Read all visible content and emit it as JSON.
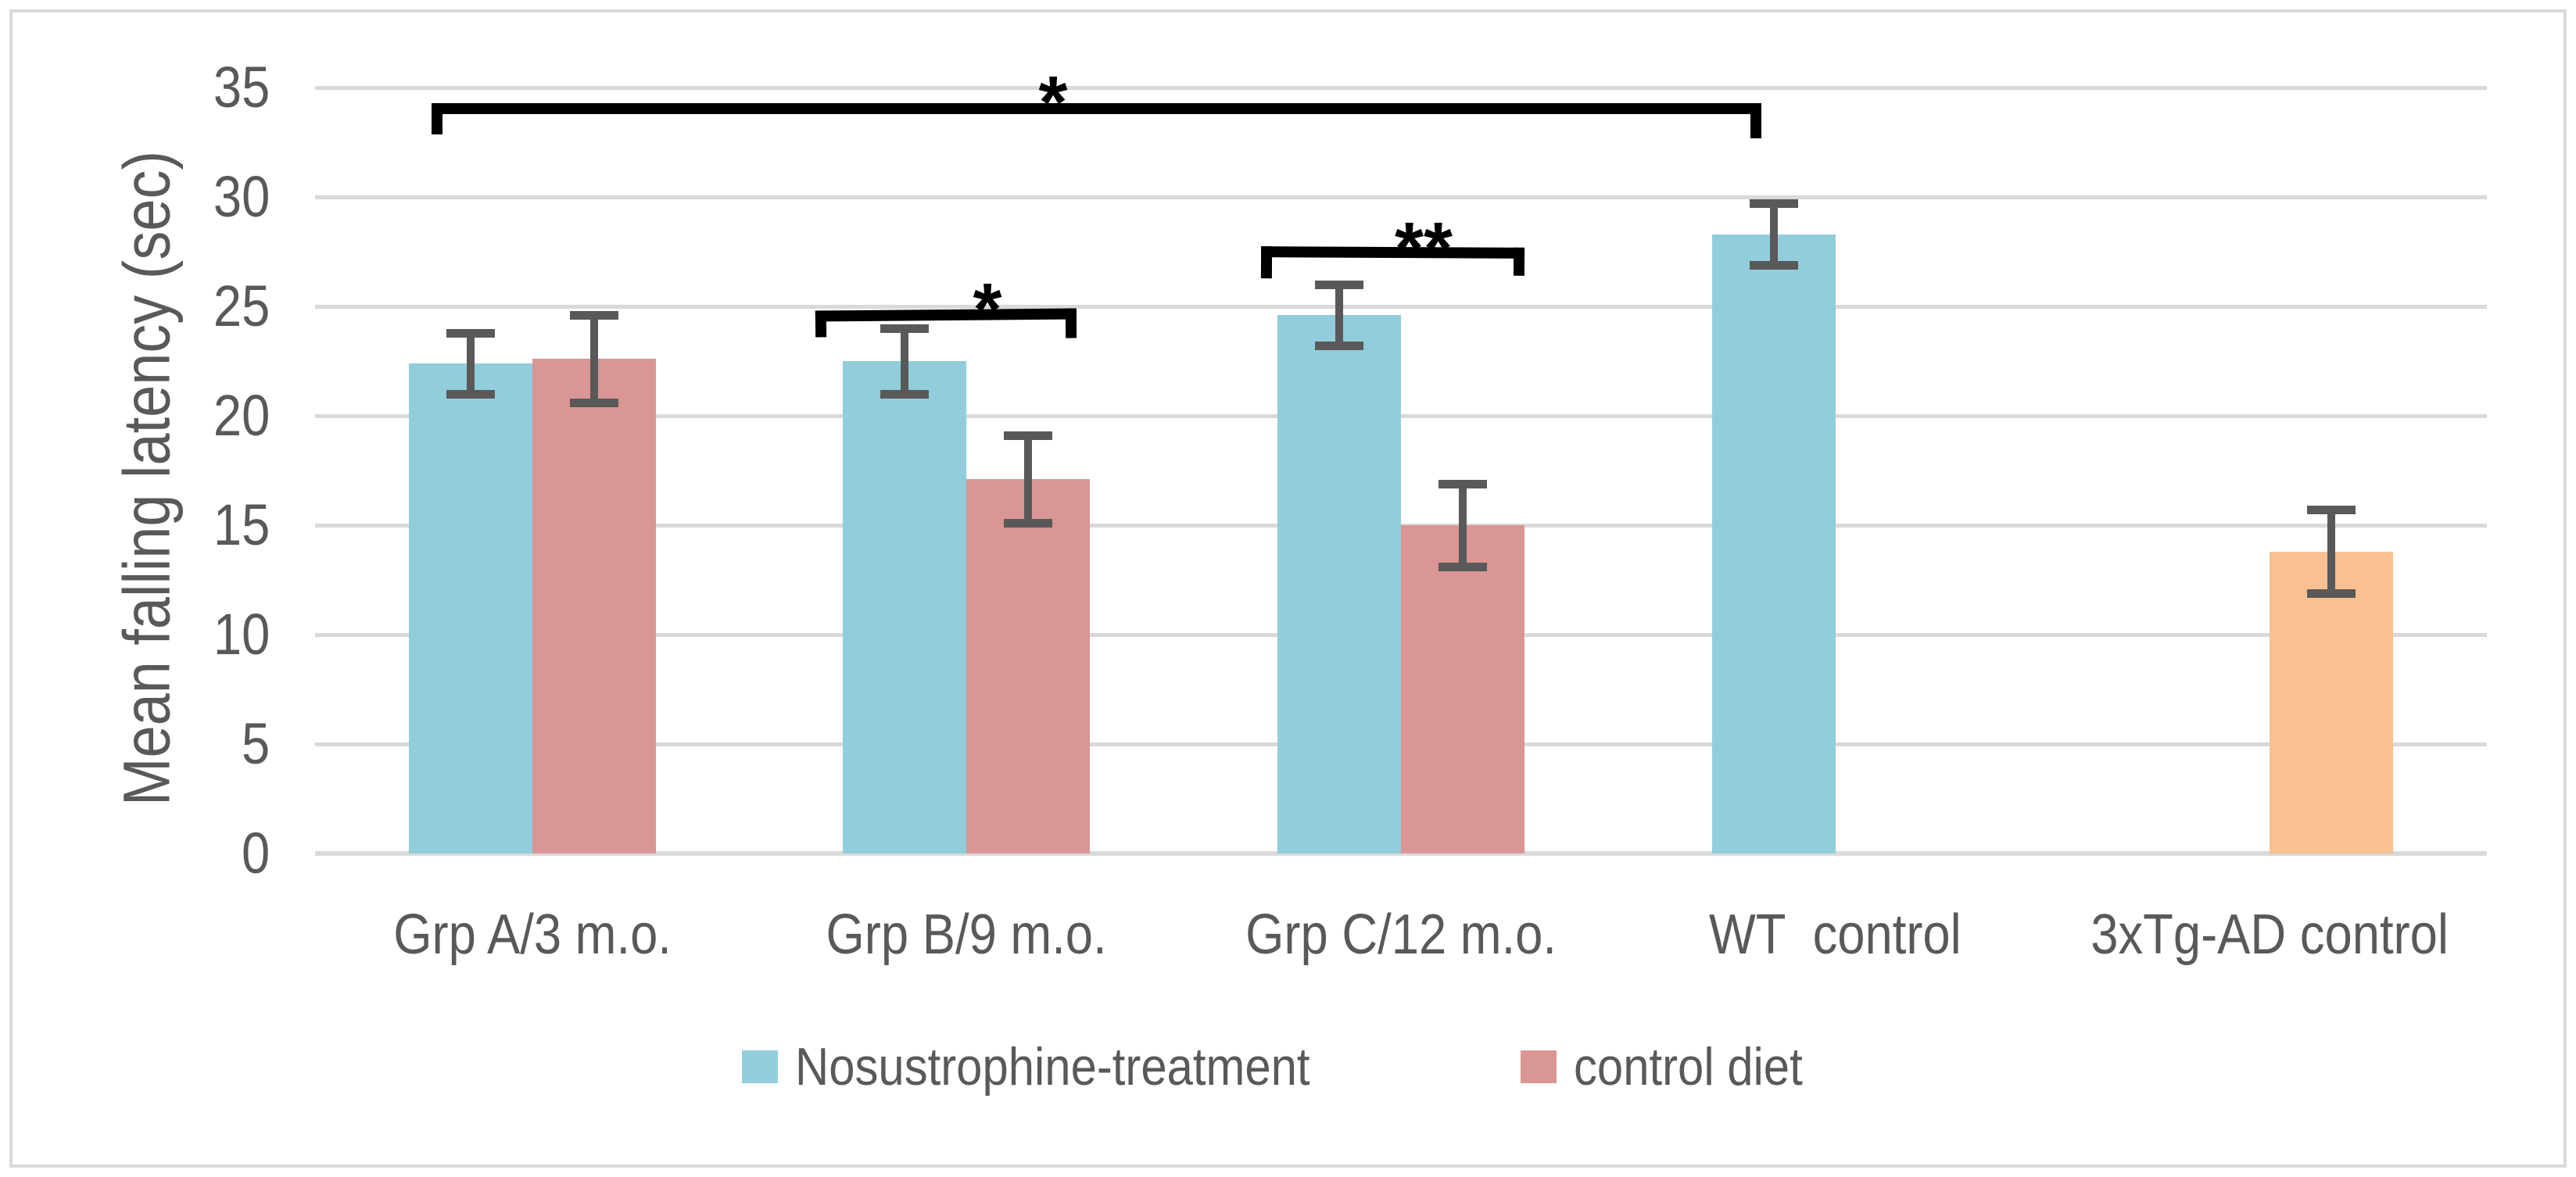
{
  "chart_data": {
    "type": "bar",
    "title": "",
    "ylabel": "Mean falling latency (sec)",
    "xlabel": "",
    "ylim": [
      0,
      35
    ],
    "yticks": [
      35,
      30,
      25,
      20,
      15,
      10,
      5,
      0
    ],
    "grid": "horizontal",
    "legend_position": "bottom-center",
    "categories": [
      "Grp A/3 m.o.",
      "Grp B/9 m.o.",
      "Grp C/12 m.o.",
      "WT  control",
      "3xTg-AD control"
    ],
    "category_slugs": [
      "grp-a",
      "grp-b",
      "grp-c",
      "wt-control",
      "3xtg-ad-control"
    ],
    "series": [
      {
        "name": "Nosustrophine-treatment",
        "color": "#92CDDC",
        "values": [
          22.4,
          22.5,
          24.6,
          28.3,
          null
        ],
        "errors": [
          1.4,
          1.5,
          1.4,
          1.4,
          null
        ]
      },
      {
        "name": "control diet",
        "color": "#D99694",
        "values": [
          22.6,
          17.1,
          15.0,
          null,
          null
        ],
        "errors": [
          2.0,
          2.0,
          1.9,
          null,
          null
        ]
      }
    ],
    "extra_bars": [
      {
        "category": "3xTg-AD control",
        "color": "#FAC090",
        "value": 13.8,
        "error": 1.9,
        "slot": "right",
        "in_legend": false
      }
    ],
    "significance": [
      {
        "label": "*",
        "between": [
          "Grp A/3 m.o. treatment",
          "WT control"
        ]
      },
      {
        "label": "*",
        "between": [
          "Grp B/9 m.o. treatment",
          "Grp B/9 m.o. control diet"
        ]
      },
      {
        "label": "**",
        "between": [
          "Grp C/12 m.o. treatment",
          "Grp C/12 m.o. control diet"
        ]
      }
    ],
    "colors": {
      "grid": "#D9D9D9",
      "axis_text": "#595959",
      "error_bar": "#595959",
      "bracket": "#000000",
      "frame_border": "#D9D9D9",
      "background": "#FFFFFF"
    }
  }
}
